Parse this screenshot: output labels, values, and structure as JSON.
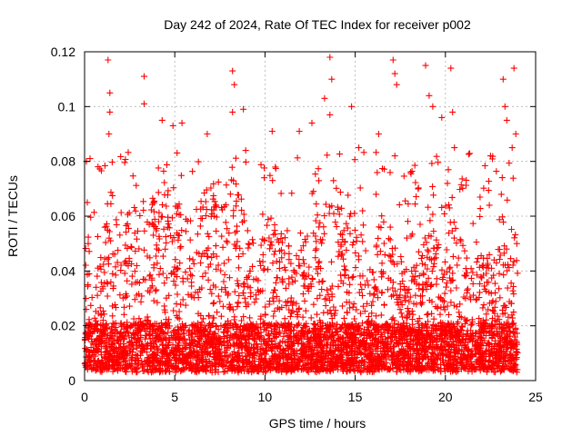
{
  "chart_data": {
    "type": "scatter",
    "title": "Day 242 of 2024, Rate Of TEC Index for receiver p002",
    "xlabel": "GPS time / hours",
    "ylabel": "ROTI / TECUs",
    "xlim": [
      0,
      25
    ],
    "ylim": [
      0,
      0.12
    ],
    "xticks": [
      "0",
      "5",
      "10",
      "15",
      "20",
      "25"
    ],
    "yticks": [
      "0",
      "0.02",
      "0.04",
      "0.06",
      "0.08",
      "0.1",
      "0.12"
    ],
    "grid": true,
    "marker": "plus",
    "color": "#ff0000",
    "series": [
      {
        "name": "",
        "points": [
          [
            0.1,
            0.08
          ],
          [
            0.15,
            0.065
          ],
          [
            0.2,
            0.05
          ],
          [
            0.3,
            0.081
          ],
          [
            0.25,
            0.039
          ],
          [
            1.3,
            0.117
          ],
          [
            1.4,
            0.105
          ],
          [
            1.4,
            0.098
          ],
          [
            1.35,
            0.09
          ],
          [
            3.3,
            0.111
          ],
          [
            3.3,
            0.101
          ],
          [
            4.3,
            0.095
          ],
          [
            4.9,
            0.093
          ],
          [
            5.4,
            0.094
          ],
          [
            6.8,
            0.09
          ],
          [
            8.2,
            0.113
          ],
          [
            8.3,
            0.108
          ],
          [
            8.2,
            0.098
          ],
          [
            8.8,
            0.099
          ],
          [
            10.4,
            0.091
          ],
          [
            11.9,
            0.091
          ],
          [
            12.6,
            0.094
          ],
          [
            13.3,
            0.103
          ],
          [
            13.6,
            0.118
          ],
          [
            13.7,
            0.11
          ],
          [
            13.6,
            0.097
          ],
          [
            14.8,
            0.1
          ],
          [
            15.2,
            0.085
          ],
          [
            16.3,
            0.09
          ],
          [
            17.1,
            0.117
          ],
          [
            17.2,
            0.112
          ],
          [
            17.3,
            0.108
          ],
          [
            17.2,
            0.082
          ],
          [
            18.9,
            0.115
          ],
          [
            19.1,
            0.104
          ],
          [
            19.3,
            0.1
          ],
          [
            19.8,
            0.096
          ],
          [
            20.3,
            0.114
          ],
          [
            20.4,
            0.098
          ],
          [
            20.5,
            0.085
          ],
          [
            22.5,
            0.082
          ],
          [
            23.2,
            0.11
          ],
          [
            23.3,
            0.1
          ],
          [
            23.4,
            0.095
          ],
          [
            23.8,
            0.114
          ],
          [
            23.9,
            0.09
          ],
          [
            23.7,
            0.085
          ],
          [
            23.1,
            0.068
          ]
        ],
        "envelope": [
          [
            0.0,
            0.04
          ],
          [
            0.5,
            0.03
          ],
          [
            1.0,
            0.045
          ],
          [
            1.5,
            0.075
          ],
          [
            2.0,
            0.05
          ],
          [
            2.5,
            0.06
          ],
          [
            3.0,
            0.07
          ],
          [
            3.5,
            0.06
          ],
          [
            4.0,
            0.065
          ],
          [
            4.5,
            0.07
          ],
          [
            5.0,
            0.06
          ],
          [
            5.5,
            0.065
          ],
          [
            6.0,
            0.055
          ],
          [
            6.5,
            0.065
          ],
          [
            7.0,
            0.07
          ],
          [
            7.5,
            0.06
          ],
          [
            8.0,
            0.075
          ],
          [
            8.5,
            0.07
          ],
          [
            9.0,
            0.055
          ],
          [
            9.5,
            0.05
          ],
          [
            10.0,
            0.06
          ],
          [
            10.5,
            0.055
          ],
          [
            11.0,
            0.05
          ],
          [
            11.5,
            0.045
          ],
          [
            12.0,
            0.04
          ],
          [
            12.5,
            0.045
          ],
          [
            13.0,
            0.06
          ],
          [
            13.5,
            0.065
          ],
          [
            14.0,
            0.06
          ],
          [
            14.5,
            0.055
          ],
          [
            15.0,
            0.06
          ],
          [
            15.5,
            0.045
          ],
          [
            16.0,
            0.04
          ],
          [
            16.5,
            0.06
          ],
          [
            17.0,
            0.055
          ],
          [
            17.5,
            0.04
          ],
          [
            18.0,
            0.035
          ],
          [
            18.5,
            0.04
          ],
          [
            19.0,
            0.05
          ],
          [
            19.5,
            0.055
          ],
          [
            20.0,
            0.06
          ],
          [
            20.5,
            0.065
          ],
          [
            21.0,
            0.045
          ],
          [
            21.5,
            0.04
          ],
          [
            22.0,
            0.045
          ],
          [
            22.5,
            0.04
          ],
          [
            23.0,
            0.055
          ],
          [
            23.5,
            0.06
          ],
          [
            24.0,
            0.05
          ]
        ]
      }
    ]
  }
}
